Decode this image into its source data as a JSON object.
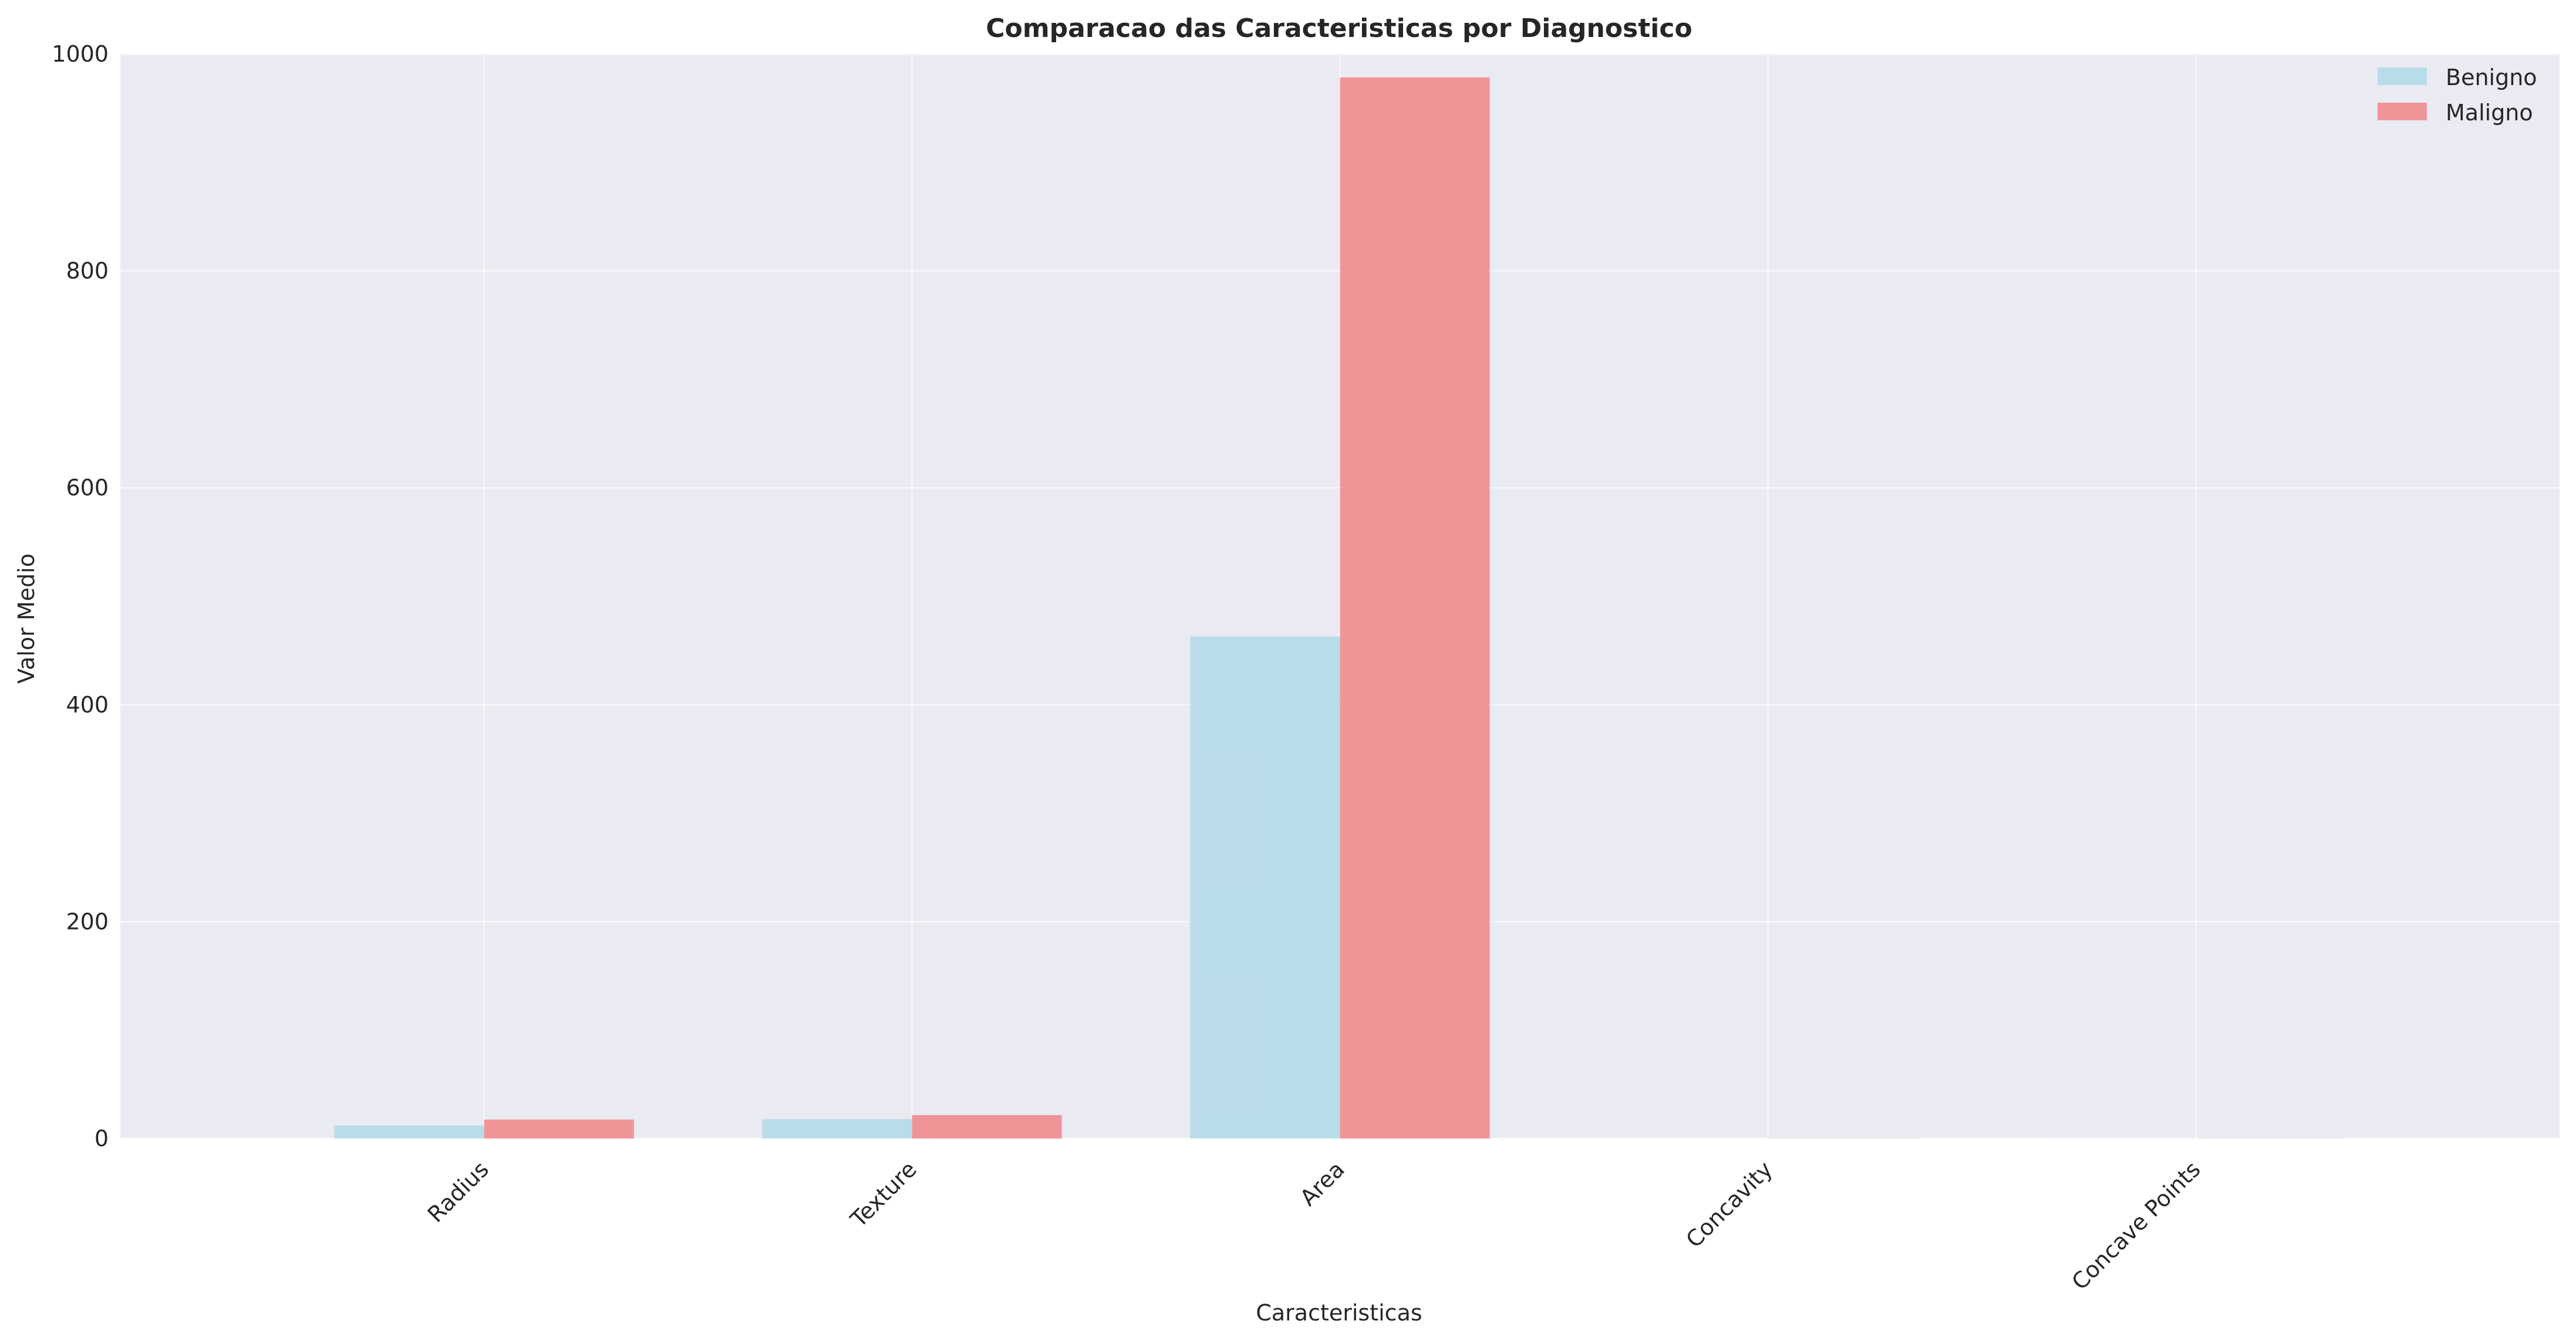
{
  "chart_data": {
    "type": "bar",
    "title": "Comparacao das Caracteristicas por Diagnostico",
    "xlabel": "Caracteristicas",
    "ylabel": "Valor Medio",
    "categories": [
      "Radius",
      "Texture",
      "Area",
      "Concavity",
      "Concave Points"
    ],
    "series": [
      {
        "name": "Benigno",
        "color": "#add8e6",
        "values": [
          12.1,
          17.9,
          462.8,
          0.05,
          0.03
        ]
      },
      {
        "name": "Maligno",
        "color": "#f08080",
        "values": [
          17.5,
          21.6,
          978.4,
          0.16,
          0.09
        ]
      }
    ],
    "ylim": [
      0,
      1000
    ],
    "yticks": [
      0,
      200,
      400,
      600,
      800,
      1000
    ],
    "grid": true,
    "legend_position": "top-right",
    "background_color": "#eaeaf2"
  }
}
